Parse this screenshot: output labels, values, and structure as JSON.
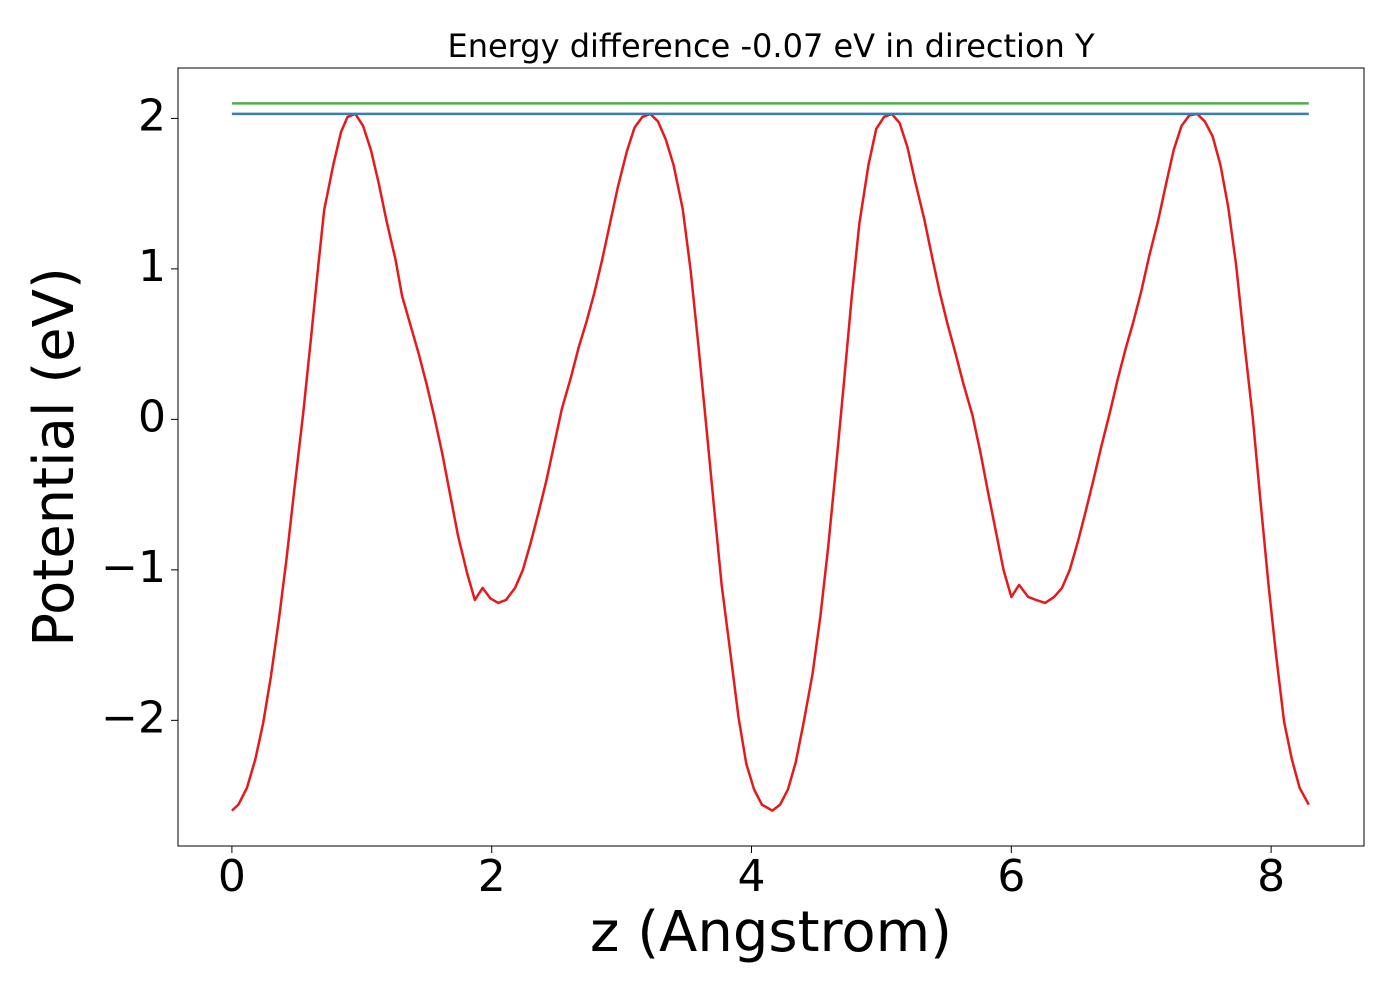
{
  "chart_data": {
    "type": "line",
    "title": "Energy difference -0.07 eV in direction Y",
    "x_label": "z (Angstrom)",
    "y_label": "Potential (eV)",
    "xlim": [
      -0.415,
      8.715
    ],
    "ylim": [
      -2.835,
      2.335
    ],
    "xticks": [
      0,
      2,
      4,
      6,
      8
    ],
    "yticks": [
      {
        "value": -2,
        "label": "−2"
      },
      {
        "value": -1,
        "label": "−1"
      },
      0,
      1,
      2
    ],
    "grid": false,
    "series": [
      {
        "color": "#e41a1c",
        "x": [
          0,
          0.05,
          0.115,
          0.18,
          0.24,
          0.3,
          0.36,
          0.42,
          0.48,
          0.55,
          0.61,
          0.66,
          0.71,
          0.78,
          0.84,
          0.89,
          0.95,
          1.01,
          1.07,
          1.13,
          1.19,
          1.26,
          1.31,
          1.38,
          1.44,
          1.5,
          1.56,
          1.62,
          1.68,
          1.74,
          1.81,
          1.87,
          1.93,
          1.99,
          2.05,
          2.11,
          2.18,
          2.24,
          2.3,
          2.36,
          2.42,
          2.48,
          2.54,
          2.61,
          2.67,
          2.73,
          2.79,
          2.85,
          2.91,
          2.97,
          3.04,
          3.1,
          3.16,
          3.22,
          3.28,
          3.34,
          3.4,
          3.47,
          3.53,
          3.59,
          3.65,
          3.71,
          3.77,
          3.84,
          3.9,
          3.96,
          4.02,
          4.08,
          4.16,
          4.22,
          4.28,
          4.34,
          4.4,
          4.47,
          4.53,
          4.59,
          4.65,
          4.71,
          4.77,
          4.83,
          4.9,
          4.96,
          5.02,
          5.08,
          5.14,
          5.2,
          5.26,
          5.33,
          5.39,
          5.45,
          5.51,
          5.57,
          5.63,
          5.7,
          5.76,
          5.82,
          5.88,
          5.94,
          6.0,
          6.06,
          6.13,
          6.19,
          6.26,
          6.33,
          6.39,
          6.45,
          6.51,
          6.57,
          6.63,
          6.69,
          6.76,
          6.82,
          6.88,
          6.94,
          7.0,
          7.06,
          7.13,
          7.19,
          7.25,
          7.31,
          7.37,
          7.43,
          7.49,
          7.55,
          7.61,
          7.67,
          7.73,
          7.79,
          7.86,
          7.92,
          7.98,
          8.04,
          8.1,
          8.16,
          8.22,
          8.29
        ],
        "values": [
          -2.6,
          -2.56,
          -2.45,
          -2.26,
          -2.02,
          -1.71,
          -1.34,
          -0.93,
          -0.47,
          0.05,
          0.55,
          0.98,
          1.39,
          1.69,
          1.91,
          2.01,
          2.03,
          1.95,
          1.79,
          1.57,
          1.32,
          1.06,
          0.82,
          0.61,
          0.43,
          0.23,
          0.01,
          -0.23,
          -0.5,
          -0.77,
          -1.02,
          -1.2,
          -1.12,
          -1.19,
          -1.22,
          -1.2,
          -1.12,
          -1.0,
          -0.82,
          -0.62,
          -0.41,
          -0.17,
          0.07,
          0.28,
          0.48,
          0.65,
          0.84,
          1.06,
          1.3,
          1.54,
          1.78,
          1.94,
          2.01,
          2.03,
          1.98,
          1.86,
          1.69,
          1.4,
          1.0,
          0.5,
          -0.03,
          -0.57,
          -1.1,
          -1.57,
          -1.98,
          -2.29,
          -2.46,
          -2.56,
          -2.6,
          -2.56,
          -2.46,
          -2.28,
          -2.02,
          -1.69,
          -1.31,
          -0.85,
          -0.32,
          0.23,
          0.8,
          1.3,
          1.69,
          1.93,
          2.01,
          2.03,
          1.97,
          1.81,
          1.58,
          1.33,
          1.08,
          0.84,
          0.63,
          0.44,
          0.24,
          0.03,
          -0.21,
          -0.48,
          -0.74,
          -1.0,
          -1.18,
          -1.1,
          -1.18,
          -1.2,
          -1.22,
          -1.18,
          -1.12,
          -1.0,
          -0.82,
          -0.62,
          -0.41,
          -0.19,
          0.05,
          0.27,
          0.47,
          0.65,
          0.85,
          1.08,
          1.32,
          1.56,
          1.79,
          1.95,
          2.02,
          2.03,
          1.98,
          1.88,
          1.69,
          1.41,
          1.03,
          0.54,
          0.0,
          -0.56,
          -1.1,
          -1.58,
          -2.01,
          -2.26,
          -2.45,
          -2.56
        ]
      },
      {
        "color": "#377eb8",
        "x": [
          0,
          8.29
        ],
        "values": [
          2.03,
          2.03
        ]
      },
      {
        "color": "#4daf4a",
        "x": [
          0,
          8.29
        ],
        "values": [
          2.1,
          2.1
        ]
      }
    ]
  }
}
